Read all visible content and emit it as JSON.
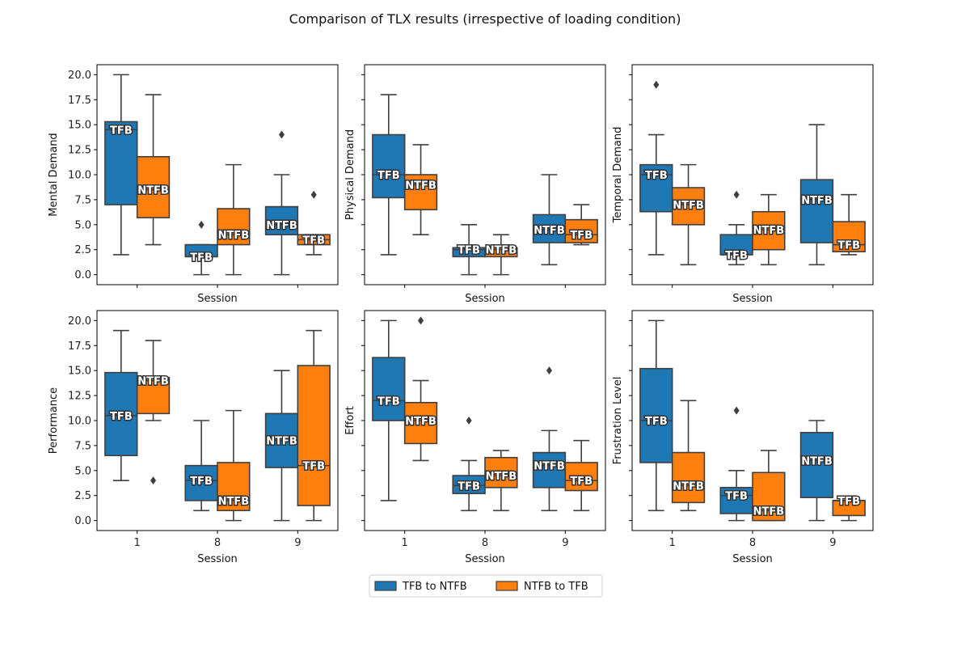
{
  "title": "Comparison of TLX results (irrespective of loading condition)",
  "legend": {
    "placement": "bottom-center",
    "entries": [
      {
        "name": "TFB to NTFB",
        "color": "#1f77b4"
      },
      {
        "name": "NTFB to TFB",
        "color": "#ff7f0e"
      }
    ]
  },
  "chart_data": [
    {
      "type": "box",
      "ylabel": "Mental Demand",
      "xlabel": "Session",
      "categories": [
        "1",
        "8",
        "9"
      ],
      "ylim": [
        -1,
        21
      ],
      "yticks": [
        "0.0",
        "2.5",
        "5.0",
        "7.5",
        "10.0",
        "12.5",
        "15.0",
        "17.5",
        "20.0"
      ],
      "series": [
        {
          "name": "TFB to NTFB",
          "boxes": [
            {
              "low": 2,
              "q1": 7,
              "med": 14.5,
              "q3": 15.3,
              "high": 20,
              "outliers": [],
              "label": "TFB"
            },
            {
              "low": 0,
              "q1": 1.8,
              "med": 1.8,
              "q3": 3,
              "high": 3,
              "outliers": [
                5
              ],
              "label": "TFB"
            },
            {
              "low": 0,
              "q1": 4,
              "med": 5,
              "q3": 6.8,
              "high": 10,
              "outliers": [
                14
              ],
              "label": "NTFB"
            }
          ]
        },
        {
          "name": "NTFB to TFB",
          "boxes": [
            {
              "low": 3,
              "q1": 5.7,
              "med": 8.5,
              "q3": 11.8,
              "high": 18,
              "outliers": [],
              "label": "NTFB"
            },
            {
              "low": 0,
              "q1": 3,
              "med": 4,
              "q3": 6.6,
              "high": 11,
              "outliers": [],
              "label": "NTFB"
            },
            {
              "low": 2,
              "q1": 3,
              "med": 3.5,
              "q3": 4,
              "high": 4,
              "outliers": [
                8
              ],
              "label": "TFB"
            }
          ]
        }
      ]
    },
    {
      "type": "box",
      "ylabel": "Physical Demand",
      "xlabel": "Session",
      "categories": [
        "1",
        "8",
        "9"
      ],
      "ylim": [
        -1,
        21
      ],
      "yticks": [
        "",
        "",
        "",
        "",
        "",
        "",
        "",
        "",
        ""
      ],
      "series": [
        {
          "name": "TFB to NTFB",
          "boxes": [
            {
              "low": 2,
              "q1": 7.7,
              "med": 10,
              "q3": 14,
              "high": 18,
              "outliers": [],
              "label": "TFB"
            },
            {
              "low": 0,
              "q1": 1.8,
              "med": 2.5,
              "q3": 2.7,
              "high": 5,
              "outliers": [],
              "label": "TFB"
            },
            {
              "low": 1,
              "q1": 3.2,
              "med": 4.5,
              "q3": 6,
              "high": 10,
              "outliers": [],
              "label": "NTFB"
            }
          ]
        },
        {
          "name": "NTFB to TFB",
          "boxes": [
            {
              "low": 4,
              "q1": 6.5,
              "med": 9,
              "q3": 10,
              "high": 13,
              "outliers": [],
              "label": "NTFB"
            },
            {
              "low": 0,
              "q1": 1.8,
              "med": 2.5,
              "q3": 2.7,
              "high": 4,
              "outliers": [],
              "label": "NTFB"
            },
            {
              "low": 3,
              "q1": 3.2,
              "med": 4,
              "q3": 5.5,
              "high": 7,
              "outliers": [],
              "label": "TFB"
            }
          ]
        }
      ]
    },
    {
      "type": "box",
      "ylabel": "Temporal Demand",
      "xlabel": "Session",
      "categories": [
        "1",
        "8",
        "9"
      ],
      "ylim": [
        -1,
        21
      ],
      "yticks": [
        "",
        "",
        "",
        "",
        "",
        "",
        "",
        "",
        ""
      ],
      "series": [
        {
          "name": "TFB to NTFB",
          "boxes": [
            {
              "low": 2,
              "q1": 6.3,
              "med": 10,
              "q3": 11,
              "high": 14,
              "outliers": [
                19
              ],
              "label": "TFB"
            },
            {
              "low": 1,
              "q1": 2,
              "med": 2,
              "q3": 4,
              "high": 5,
              "outliers": [
                8
              ],
              "label": "TFB"
            },
            {
              "low": 1,
              "q1": 3.2,
              "med": 7.5,
              "q3": 9.5,
              "high": 15,
              "outliers": [],
              "label": "NTFB"
            }
          ]
        },
        {
          "name": "NTFB to TFB",
          "boxes": [
            {
              "low": 1,
              "q1": 5,
              "med": 7,
              "q3": 8.7,
              "high": 11,
              "outliers": [],
              "label": "NTFB"
            },
            {
              "low": 1,
              "q1": 2.5,
              "med": 4.5,
              "q3": 6.3,
              "high": 8,
              "outliers": [],
              "label": "NTFB"
            },
            {
              "low": 2,
              "q1": 2.3,
              "med": 3,
              "q3": 5.3,
              "high": 8,
              "outliers": [],
              "label": "TFB"
            }
          ]
        }
      ]
    },
    {
      "type": "box",
      "ylabel": "Performance",
      "xlabel": "Session",
      "categories": [
        "1",
        "8",
        "9"
      ],
      "ylim": [
        -1,
        21
      ],
      "yticks": [
        "0.0",
        "2.5",
        "5.0",
        "7.5",
        "10.0",
        "12.5",
        "15.0",
        "17.5",
        "20.0"
      ],
      "series": [
        {
          "name": "TFB to NTFB",
          "boxes": [
            {
              "low": 4,
              "q1": 6.5,
              "med": 10.5,
              "q3": 14.8,
              "high": 19,
              "outliers": [],
              "label": "TFB"
            },
            {
              "low": 1,
              "q1": 2,
              "med": 4,
              "q3": 5.5,
              "high": 10,
              "outliers": [],
              "label": "TFB"
            },
            {
              "low": 0,
              "q1": 5.3,
              "med": 8,
              "q3": 10.7,
              "high": 15,
              "outliers": [],
              "label": "NTFB"
            }
          ]
        },
        {
          "name": "NTFB to TFB",
          "boxes": [
            {
              "low": 10,
              "q1": 10.7,
              "med": 14,
              "q3": 14.3,
              "high": 18,
              "outliers": [
                4
              ],
              "label": "NTFB"
            },
            {
              "low": 0,
              "q1": 1,
              "med": 2,
              "q3": 5.8,
              "high": 11,
              "outliers": [],
              "label": "NTFB"
            },
            {
              "low": 0,
              "q1": 1.5,
              "med": 5.5,
              "q3": 15.5,
              "high": 19,
              "outliers": [],
              "label": "TFB"
            }
          ]
        }
      ]
    },
    {
      "type": "box",
      "ylabel": "Effort",
      "xlabel": "Session",
      "categories": [
        "1",
        "8",
        "9"
      ],
      "ylim": [
        -1,
        21
      ],
      "yticks": [
        "",
        "",
        "",
        "",
        "",
        "",
        "",
        "",
        ""
      ],
      "series": [
        {
          "name": "TFB to NTFB",
          "boxes": [
            {
              "low": 2,
              "q1": 10,
              "med": 12,
              "q3": 16.3,
              "high": 20,
              "outliers": [],
              "label": "TFB"
            },
            {
              "low": 1,
              "q1": 2.7,
              "med": 3.5,
              "q3": 4.5,
              "high": 6,
              "outliers": [
                10
              ],
              "label": "TFB"
            },
            {
              "low": 1,
              "q1": 3.3,
              "med": 5.5,
              "q3": 6.8,
              "high": 9,
              "outliers": [
                15
              ],
              "label": "NTFB"
            }
          ]
        },
        {
          "name": "NTFB to TFB",
          "boxes": [
            {
              "low": 6,
              "q1": 7.7,
              "med": 10,
              "q3": 11.8,
              "high": 14,
              "outliers": [
                20
              ],
              "label": "NTFB"
            },
            {
              "low": 1,
              "q1": 3.3,
              "med": 4.5,
              "q3": 6.3,
              "high": 7,
              "outliers": [],
              "label": "NTFB"
            },
            {
              "low": 1,
              "q1": 3,
              "med": 4,
              "q3": 5.8,
              "high": 8,
              "outliers": [],
              "label": "TFB"
            }
          ]
        }
      ]
    },
    {
      "type": "box",
      "ylabel": "Frustration Level",
      "xlabel": "Session",
      "categories": [
        "1",
        "8",
        "9"
      ],
      "ylim": [
        -1,
        21
      ],
      "yticks": [
        "",
        "",
        "",
        "",
        "",
        "",
        "",
        "",
        ""
      ],
      "series": [
        {
          "name": "TFB to NTFB",
          "boxes": [
            {
              "low": 1,
              "q1": 5.8,
              "med": 10,
              "q3": 15.2,
              "high": 20,
              "outliers": [],
              "label": "TFB"
            },
            {
              "low": 0,
              "q1": 0.7,
              "med": 2.5,
              "q3": 3.3,
              "high": 5,
              "outliers": [
                11
              ],
              "label": "TFB"
            },
            {
              "low": 0,
              "q1": 2.3,
              "med": 6,
              "q3": 8.8,
              "high": 10,
              "outliers": [],
              "label": "NTFB"
            }
          ]
        },
        {
          "name": "NTFB to TFB",
          "boxes": [
            {
              "low": 1,
              "q1": 1.8,
              "med": 3.5,
              "q3": 6.8,
              "high": 12,
              "outliers": [],
              "label": "NTFB"
            },
            {
              "low": 0,
              "q1": 0,
              "med": 1,
              "q3": 4.8,
              "high": 7,
              "outliers": [],
              "label": "NTFB"
            },
            {
              "low": 0,
              "q1": 0.5,
              "med": 2,
              "q3": 2,
              "high": 2,
              "outliers": [],
              "label": "TFB"
            }
          ]
        }
      ]
    }
  ]
}
